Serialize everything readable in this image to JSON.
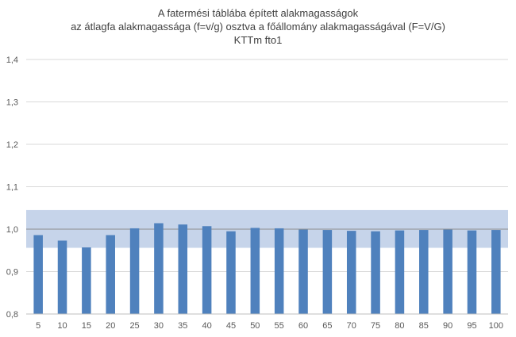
{
  "chart_data": {
    "type": "bar",
    "title_lines": [
      "A fatermési táblába épített alakmagasságok",
      "az átlagfa alakmagassága (f=v/g) osztva a főállomány alakmagasságával (F=V/G)",
      "KTTm fto1"
    ],
    "categories": [
      "5",
      "10",
      "15",
      "20",
      "25",
      "30",
      "35",
      "40",
      "45",
      "50",
      "55",
      "60",
      "65",
      "70",
      "75",
      "80",
      "85",
      "90",
      "95",
      "100"
    ],
    "values": [
      0.986,
      0.973,
      0.957,
      0.986,
      1.002,
      1.014,
      1.011,
      1.007,
      0.995,
      1.003,
      1.002,
      0.999,
      0.998,
      0.996,
      0.995,
      0.997,
      0.998,
      0.999,
      0.997,
      0.998
    ],
    "ylim": [
      0.8,
      1.4
    ],
    "yticks": [
      "0,8",
      "0,9",
      "1,0",
      "1,1",
      "1,2",
      "1,3",
      "1,4"
    ],
    "band": [
      0.956,
      1.045
    ],
    "grid": true,
    "colors": {
      "bar": "#4f81bd",
      "band": "#c6d4ea",
      "grid": "#d9d9d9",
      "axis": "#bfbfbf",
      "text": "#595959"
    }
  }
}
